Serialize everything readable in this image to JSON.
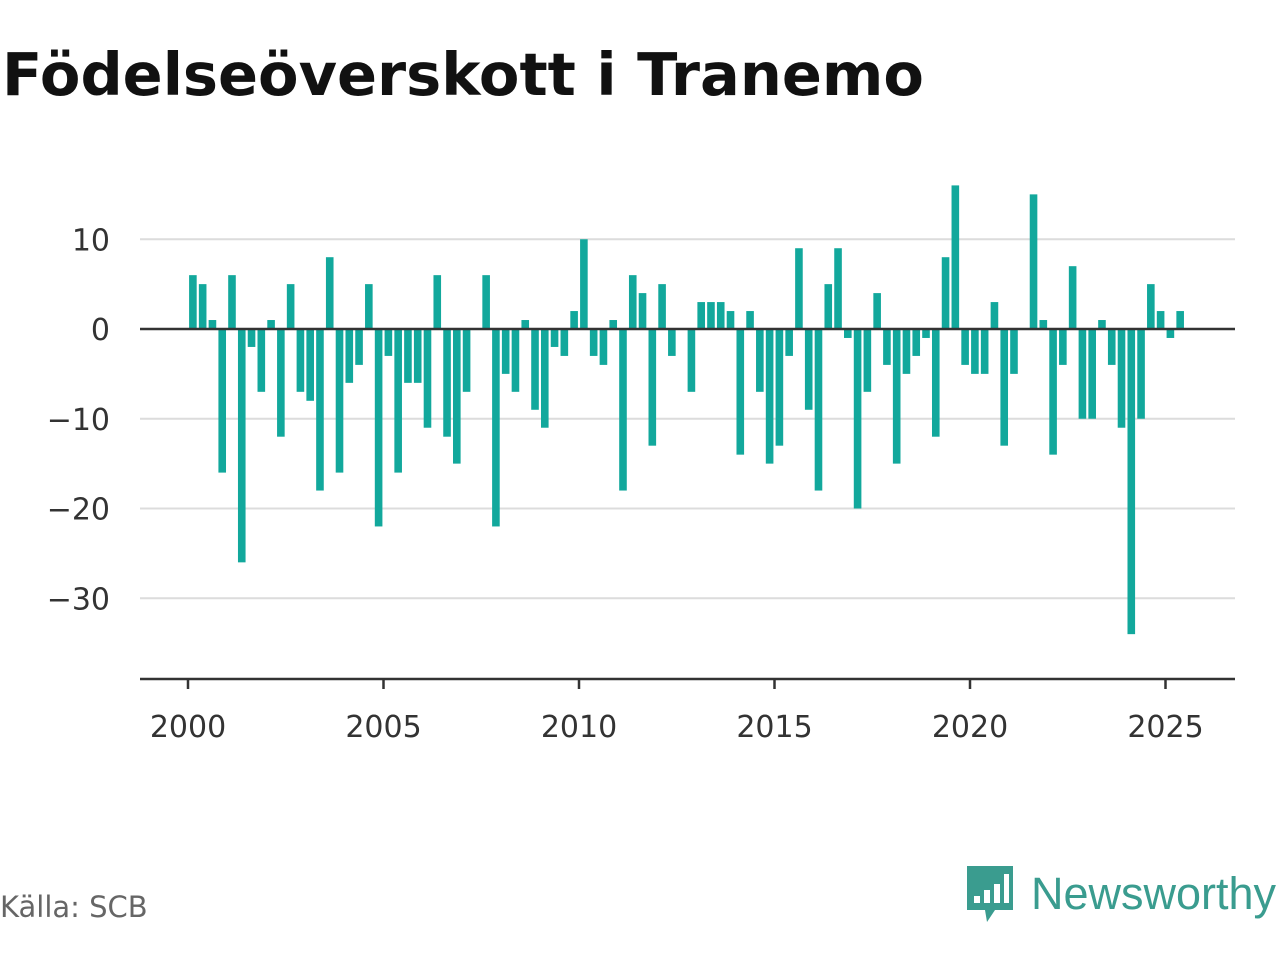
{
  "title": "Födelseöverskott i Tranemo",
  "source": "Källa: SCB",
  "brand": {
    "name": "Newsworthy",
    "icon": "newsworthy-logo-icon"
  },
  "colors": {
    "bar": "#12a89c",
    "grid": "#dcdcdc",
    "axis": "#333333",
    "brand": "#3a9c8f"
  },
  "chart_data": {
    "type": "bar",
    "title": "Födelseöverskott i Tranemo",
    "xlabel": "",
    "ylabel": "",
    "ylim": [
      -39,
      17
    ],
    "xlim": [
      1999.6,
      2025.9
    ],
    "y_ticks": [
      10,
      0,
      -10,
      -20,
      -30
    ],
    "y_tick_labels": [
      "10",
      "0",
      "−10",
      "−20",
      "−30"
    ],
    "x_ticks": [
      2000,
      2005,
      2010,
      2015,
      2020,
      2025
    ],
    "x_tick_labels": [
      "2000",
      "2005",
      "2010",
      "2015",
      "2020",
      "2025"
    ],
    "grid": true,
    "start": "2000-Q1",
    "frequency": "quarterly",
    "values": [
      6,
      5,
      1,
      -16,
      6,
      -26,
      -2,
      -7,
      1,
      -12,
      5,
      -7,
      -8,
      -18,
      8,
      -16,
      -6,
      -4,
      5,
      -22,
      -3,
      -16,
      -6,
      -6,
      -11,
      6,
      -12,
      -15,
      -7,
      0,
      6,
      -22,
      -5,
      -7,
      1,
      -9,
      -11,
      -2,
      -3,
      2,
      10,
      -3,
      -4,
      1,
      -18,
      6,
      4,
      -13,
      5,
      -3,
      0,
      -7,
      3,
      3,
      3,
      2,
      -14,
      2,
      -7,
      -15,
      -13,
      -3,
      9,
      -9,
      -18,
      5,
      9,
      -1,
      -20,
      -7,
      4,
      -4,
      -15,
      -5,
      -3,
      -1,
      -12,
      8,
      16,
      -4,
      -5,
      -5,
      3,
      -13,
      -5,
      0,
      15,
      1,
      -14,
      -4,
      7,
      -10,
      -10,
      1,
      -4,
      -11,
      -34,
      -10,
      5,
      2,
      -1,
      2
    ]
  }
}
